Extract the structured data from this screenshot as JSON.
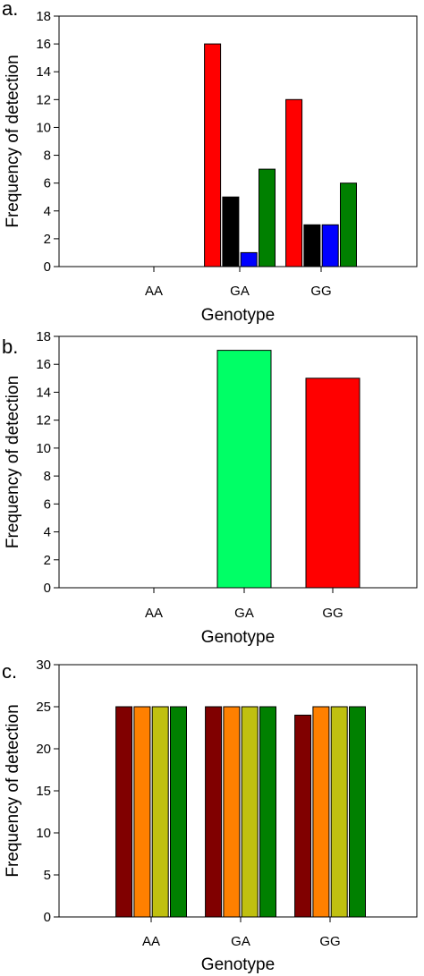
{
  "chart_data": [
    {
      "panel": "a.",
      "type": "bar",
      "categories": [
        "AA",
        "GA",
        "GG"
      ],
      "series": [
        {
          "color": "#ff0000",
          "values": [
            0,
            16,
            12
          ]
        },
        {
          "color": "#000000",
          "values": [
            0,
            5,
            3
          ]
        },
        {
          "color": "#0000ff",
          "values": [
            0,
            1,
            3
          ]
        },
        {
          "color": "#008000",
          "values": [
            0,
            7,
            6
          ]
        }
      ],
      "yticks": [
        0,
        2,
        4,
        6,
        8,
        10,
        12,
        14,
        16,
        18
      ],
      "ylim": [
        0,
        18
      ],
      "xlabel": "Genotype",
      "ylabel": "Frequency of detection"
    },
    {
      "panel": "b.",
      "type": "bar",
      "categories": [
        "AA",
        "GA",
        "GG"
      ],
      "series": [
        {
          "colors": [
            "#00ff66",
            "#00ff66",
            "#ff0000"
          ],
          "values": [
            0,
            17,
            15
          ]
        }
      ],
      "yticks": [
        0,
        2,
        4,
        6,
        8,
        10,
        12,
        14,
        16,
        18
      ],
      "ylim": [
        0,
        18
      ],
      "xlabel": "Genotype",
      "ylabel": "Frequency of detection"
    },
    {
      "panel": "c.",
      "type": "bar",
      "categories": [
        "AA",
        "GA",
        "GG"
      ],
      "series": [
        {
          "color": "#800000",
          "values": [
            25,
            25,
            24
          ]
        },
        {
          "color": "#ff8000",
          "values": [
            25,
            25,
            25
          ]
        },
        {
          "color": "#c0c010",
          "values": [
            25,
            25,
            25
          ]
        },
        {
          "color": "#008000",
          "values": [
            25,
            25,
            25
          ]
        }
      ],
      "yticks": [
        0,
        5,
        10,
        15,
        20,
        25,
        30
      ],
      "ylim": [
        0,
        30
      ],
      "xlabel": "Genotype",
      "ylabel": "Frequency of detection"
    }
  ]
}
